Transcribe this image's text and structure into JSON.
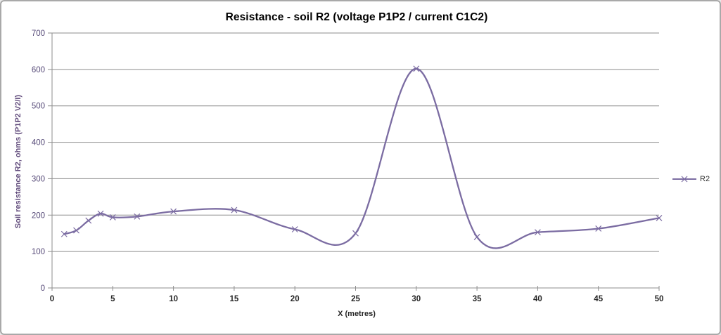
{
  "chart_data": {
    "type": "line",
    "title": "Resistance - soil R2 (voltage P1P2 / current C1C2)",
    "xlabel": "X (metres)",
    "ylabel": "Soil resistance R2, ohms (P1P2 V2/I)",
    "xlim": [
      0,
      50
    ],
    "ylim": [
      0,
      700
    ],
    "x_ticks": [
      0,
      5,
      10,
      15,
      20,
      25,
      30,
      35,
      40,
      45,
      50
    ],
    "y_ticks": [
      0,
      100,
      200,
      300,
      400,
      500,
      600,
      700
    ],
    "grid": "horizontal-only",
    "legend_position": "right",
    "series": [
      {
        "name": "R2",
        "marker": "x",
        "smooth": true,
        "x": [
          1,
          2,
          3,
          4,
          5,
          7,
          10,
          15,
          20,
          25,
          30,
          35,
          40,
          45,
          50
        ],
        "y": [
          148,
          158,
          185,
          204,
          194,
          196,
          210,
          214,
          161,
          150,
          602,
          140,
          153,
          163,
          192
        ]
      }
    ],
    "colors": {
      "line": "#7b6ca2",
      "gridline": "#8e8e8e",
      "axis": "#8e8e8e",
      "y_tick_text": "#564a78",
      "x_tick_text": "#262626",
      "y_axis_title": "#604a7b",
      "x_axis_title": "#262626",
      "title_text": "#000000",
      "legend_text": "#333333",
      "border": "#a9a9a9"
    }
  }
}
